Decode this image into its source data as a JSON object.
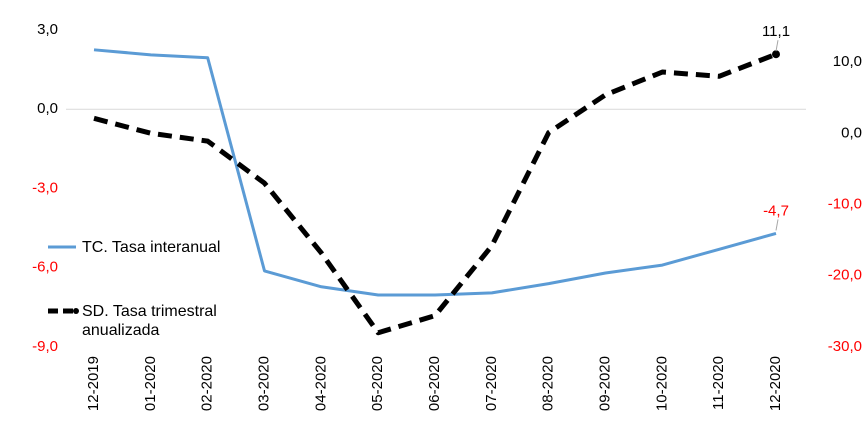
{
  "chart_data": {
    "type": "line",
    "categories": [
      "12-2019",
      "01-2020",
      "02-2020",
      "03-2020",
      "04-2020",
      "05-2020",
      "06-2020",
      "07-2020",
      "08-2020",
      "09-2020",
      "10-2020",
      "11-2020",
      "12-2020"
    ],
    "ylim": [
      -9,
      3
    ],
    "yticks": [
      {
        "value": 3,
        "label": "3,0"
      },
      {
        "value": 0,
        "label": "0,0"
      },
      {
        "value": -3,
        "label": "-3,0"
      },
      {
        "value": -6,
        "label": "-6,0"
      },
      {
        "value": -9,
        "label": "-9,0"
      }
    ],
    "y2lim": [
      -30,
      14.5
    ],
    "y2ticks": [
      {
        "value": 10,
        "label": "10,0"
      },
      {
        "value": 0,
        "label": "0,0"
      },
      {
        "value": -10,
        "label": "-10,0"
      },
      {
        "value": -20,
        "label": "-20,0"
      },
      {
        "value": -30,
        "label": "-30,0"
      }
    ],
    "series": [
      {
        "name": "TC. Tasa interanual",
        "color": "#5b9bd5",
        "values": [
          2.25,
          2.06,
          1.95,
          -6.12,
          -6.72,
          -7.03,
          -7.03,
          -6.95,
          -6.6,
          -6.2,
          -5.9,
          -5.3,
          -4.7
        ],
        "value_labels": [
          null,
          null,
          null,
          null,
          null,
          null,
          null,
          null,
          null,
          null,
          null,
          null,
          "-4,7"
        ],
        "label_color": "#ff0000"
      },
      {
        "name": "SD. Tasa trimestral anualizada",
        "color": "#000000",
        "axis": "y2",
        "dashed": true,
        "values": [
          2.1,
          0.0,
          -1.1,
          -7.0,
          -16.8,
          -28.0,
          -25.6,
          -15.8,
          0.1,
          5.4,
          8.6,
          8.0,
          11.1
        ],
        "value_labels": [
          null,
          null,
          null,
          null,
          null,
          null,
          null,
          null,
          null,
          null,
          null,
          null,
          "11,1"
        ],
        "label_color": "#000000"
      }
    ],
    "negative_tick_color": "#ff0000"
  }
}
